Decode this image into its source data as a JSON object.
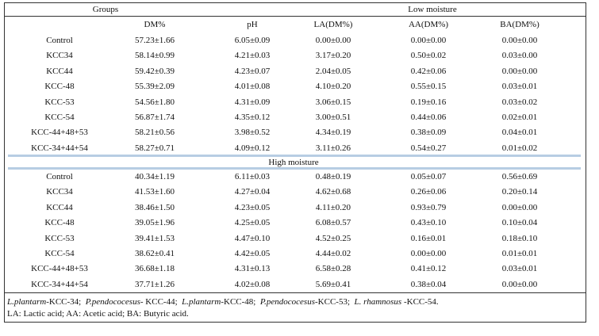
{
  "table": {
    "header": {
      "groups": "Groups",
      "columns": [
        "DM%",
        "pH",
        "LA(DM%)",
        "AA(DM%)",
        "BA(DM%)"
      ]
    },
    "sections": [
      {
        "title": "Low moisture",
        "rows": [
          [
            "Control",
            "57.23±1.66",
            "6.05±0.09",
            "0.00±0.00",
            "0.00±0.00",
            "0.00±0.00"
          ],
          [
            "KCC34",
            "58.14±0.99",
            "4.21±0.03",
            "3.17±0.20",
            "0.50±0.02",
            "0.03±0.00"
          ],
          [
            "KCC44",
            "59.42±0.39",
            "4.23±0.07",
            "2.04±0.05",
            "0.42±0.06",
            "0.00±0.00"
          ],
          [
            "KCC-48",
            "55.39±2.09",
            "4.01±0.08",
            "4.10±0.20",
            "0.55±0.15",
            "0.03±0.01"
          ],
          [
            "KCC-53",
            "54.56±1.80",
            "4.31±0.09",
            "3.06±0.15",
            "0.19±0.16",
            "0.03±0.02"
          ],
          [
            "KCC-54",
            "56.87±1.74",
            "4.35±0.12",
            "3.00±0.51",
            "0.44±0.06",
            "0.02±0.01"
          ],
          [
            "KCC-44+48+53",
            "58.21±0.56",
            "3.98±0.52",
            "4.34±0.19",
            "0.38±0.09",
            "0.04±0.01"
          ],
          [
            "KCC-34+44+54",
            "58.27±0.71",
            "4.09±0.12",
            "3.11±0.26",
            "0.54±0.27",
            "0.01±0.02"
          ]
        ]
      },
      {
        "title": "High moisture",
        "rows": [
          [
            "Control",
            "40.34±1.19",
            "6.11±0.03",
            "0.48±0.19",
            "0.05±0.07",
            "0.56±0.69"
          ],
          [
            "KCC34",
            "41.53±1.60",
            "4.27±0.04",
            "4.62±0.68",
            "0.26±0.06",
            "0.20±0.14"
          ],
          [
            "KCC44",
            "38.46±1.50",
            "4.23±0.05",
            "4.11±0.20",
            "0.93±0.79",
            "0.00±0.00"
          ],
          [
            "KCC-48",
            "39.05±1.96",
            "4.25±0.05",
            "6.08±0.57",
            "0.43±0.10",
            "0.10±0.04"
          ],
          [
            "KCC-53",
            "39.41±1.53",
            "4.47±0.10",
            "4.52±0.25",
            "0.16±0.01",
            "0.18±0.10"
          ],
          [
            "KCC-54",
            "38.62±0.41",
            "4.42±0.05",
            "4.44±0.02",
            "0.00±0.00",
            "0.01±0.01"
          ],
          [
            "KCC-44+48+53",
            "36.68±1.18",
            "4.31±0.13",
            "6.58±0.28",
            "0.41±0.12",
            "0.03±0.01"
          ],
          [
            "KCC-34+44+54",
            "37.71±1.26",
            "4.02±0.08",
            "5.69±0.41",
            "0.38±0.04",
            "0.00±0.00"
          ]
        ]
      }
    ],
    "footnote": {
      "strains": [
        {
          "species": "L.plantarm",
          "code": "-KCC-34;"
        },
        {
          "species": "P.pendococesus",
          "code": "- KCC-44;"
        },
        {
          "species": "L.plantarm",
          "code": "-KCC-48;"
        },
        {
          "species": "P.pendococesus",
          "code": "-KCC-53;"
        },
        {
          "species": "L. rhamnosus",
          "code": " -KCC-54."
        }
      ],
      "abbreviations": "LA: Lactic acid; AA: Acetic acid; BA: Butyric acid."
    }
  }
}
